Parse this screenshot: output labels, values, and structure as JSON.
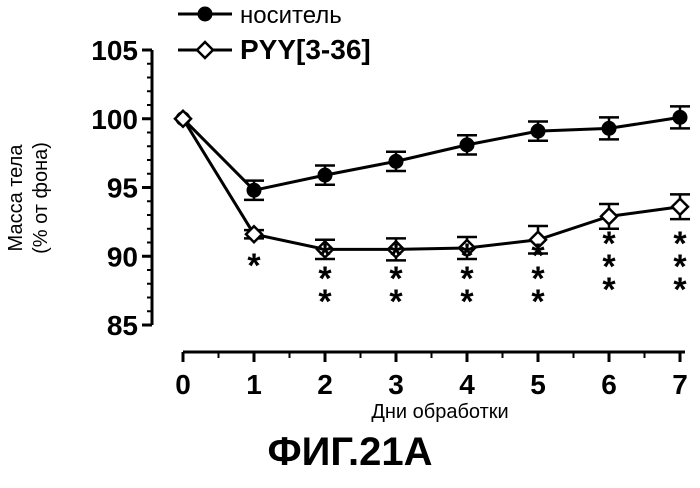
{
  "chart_data": {
    "type": "line",
    "xlabel": "Дни обработки",
    "ylabel_line1": "Масса тела",
    "ylabel_line2": "(% от фона)",
    "x": [
      0,
      1,
      2,
      3,
      4,
      5,
      6,
      7
    ],
    "xlim": [
      0,
      7
    ],
    "ylim": [
      85,
      105
    ],
    "xticks": [
      "0",
      "1",
      "2",
      "3",
      "4",
      "5",
      "6",
      "7"
    ],
    "yticks": [
      "85",
      "90",
      "95",
      "100",
      "105"
    ],
    "legend_placement": "top",
    "series": [
      {
        "name": "носитель",
        "marker": "filled-circle",
        "values": [
          100,
          94.8,
          95.9,
          96.9,
          98.1,
          99.1,
          99.3,
          100.1
        ],
        "errors": [
          0,
          0.7,
          0.7,
          0.7,
          0.7,
          0.7,
          0.8,
          0.8
        ]
      },
      {
        "name": "PYY[3-36]",
        "marker": "open-diamond",
        "values": [
          100,
          91.6,
          90.5,
          90.5,
          90.6,
          91.2,
          92.9,
          93.6
        ],
        "errors": [
          0,
          0.3,
          0.7,
          0.8,
          0.8,
          1.0,
          0.9,
          0.9
        ]
      }
    ],
    "significance": [
      {
        "x": 1,
        "label": "*"
      },
      {
        "x": 2,
        "label": "***"
      },
      {
        "x": 3,
        "label": "***"
      },
      {
        "x": 4,
        "label": "***"
      },
      {
        "x": 5,
        "label": "***"
      },
      {
        "x": 6,
        "label": "***"
      },
      {
        "x": 7,
        "label": "***"
      }
    ]
  },
  "figure_caption": "ФИГ.21А"
}
